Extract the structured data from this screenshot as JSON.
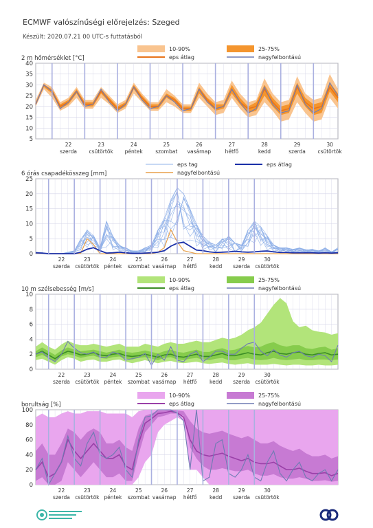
{
  "header": {
    "title": "ECMWF valószínűségi előrejelzés: Szeged",
    "subtitle": "Készült: 2020.07.21 00 UTC-s futtatásból"
  },
  "days": [
    {
      "num": "22",
      "name": "szerda"
    },
    {
      "num": "23",
      "name": "csütörtök"
    },
    {
      "num": "24",
      "name": "péntek"
    },
    {
      "num": "25",
      "name": "szombat"
    },
    {
      "num": "26",
      "name": "vasárnap"
    },
    {
      "num": "27",
      "name": "hétfő"
    },
    {
      "num": "28",
      "name": "kedd"
    },
    {
      "num": "29",
      "name": "szerda"
    },
    {
      "num": "30",
      "name": "csütörtök"
    }
  ],
  "colors": {
    "temp_band_outer": "#f9c48f",
    "temp_band_inner": "#f4952e",
    "temp_mean": "#e8731a",
    "hires": "#6e7cb3",
    "precip_member": "#8fb0e8",
    "precip_mean": "#1a2fa8",
    "precip_hires": "#e8a04a",
    "wind_band_outer": "#b2e47a",
    "wind_band_inner": "#86cc4c",
    "wind_mean": "#3a8c26",
    "cloud_band_outer": "#e9a6ee",
    "cloud_band_inner": "#c77ad3",
    "cloud_mean": "#9a40a8",
    "grid": "#d6d6e8",
    "day_line": "#aab0e0"
  },
  "chart_data": [
    {
      "type": "area",
      "id": "temperature",
      "title": "2 m hőmérséklet [°C]",
      "legend": {
        "band_outer": "10-90%",
        "band_inner": "25-75%",
        "mean": "eps átlag",
        "hires": "nagyfelbontású"
      },
      "x_step_hours": 6,
      "ylim": [
        5,
        40
      ],
      "yticks": [
        5,
        10,
        15,
        20,
        25,
        30,
        35,
        40
      ],
      "p10": [
        20,
        28,
        24,
        18,
        20,
        24,
        19,
        19,
        24,
        21,
        17,
        19,
        26,
        22,
        18,
        18,
        22,
        20,
        17,
        17,
        24,
        20,
        16,
        17,
        24,
        19,
        15,
        16,
        22,
        18,
        13,
        14,
        22,
        17,
        13,
        14,
        24,
        19
      ],
      "p25": [
        21,
        29,
        26,
        19,
        21,
        26,
        20,
        20,
        26,
        22,
        18,
        20,
        28,
        23,
        19,
        19,
        24,
        22,
        18,
        18,
        26,
        22,
        18,
        19,
        26,
        21,
        17,
        18,
        25,
        20,
        16,
        17,
        26,
        20,
        16,
        17,
        27,
        22
      ],
      "mean": [
        21,
        30,
        27,
        20,
        22,
        27,
        21,
        21,
        27,
        23,
        19,
        21,
        29,
        24,
        20,
        20,
        25,
        23,
        19,
        19,
        28,
        23,
        19,
        20,
        28,
        22,
        19,
        20,
        28,
        22,
        18,
        19,
        29,
        22,
        19,
        20,
        29,
        24
      ],
      "p75": [
        22,
        30,
        28,
        21,
        23,
        28,
        22,
        22,
        28,
        24,
        20,
        22,
        30,
        25,
        21,
        21,
        26,
        24,
        20,
        20,
        29,
        24,
        21,
        21,
        30,
        24,
        20,
        22,
        30,
        24,
        20,
        21,
        31,
        24,
        21,
        22,
        31,
        26
      ],
      "p90": [
        23,
        31,
        29,
        22,
        24,
        29,
        23,
        23,
        29,
        25,
        21,
        23,
        31,
        26,
        22,
        22,
        28,
        25,
        21,
        21,
        31,
        26,
        22,
        23,
        32,
        26,
        22,
        23,
        33,
        26,
        22,
        23,
        34,
        26,
        23,
        24,
        35,
        28
      ],
      "hires": [
        21,
        30,
        27,
        19,
        22,
        27,
        20,
        21,
        28,
        22,
        18,
        21,
        29,
        23,
        19,
        20,
        25,
        22,
        18,
        19,
        28,
        22,
        19,
        20,
        28,
        22,
        17,
        19,
        29,
        21,
        17,
        18,
        30,
        21,
        17,
        19,
        31,
        25
      ]
    },
    {
      "type": "line",
      "id": "precipitation",
      "title": "6 órás csapadékösszeg [mm]",
      "legend": {
        "members": "eps tag",
        "mean": "eps átlag",
        "hires": "nagyfelbontású"
      },
      "x_step_hours": 6,
      "ylim": [
        0,
        25
      ],
      "yticks": [
        0,
        5,
        10,
        15,
        20,
        25
      ],
      "mean": [
        0.3,
        0.2,
        0,
        0,
        0,
        0,
        0,
        0.5,
        1.5,
        2,
        1,
        0.2,
        0.3,
        0.5,
        0.3,
        0.1,
        0.1,
        0.2,
        0.3,
        0.5,
        1,
        2.5,
        3.5,
        3.8,
        2.5,
        1.2,
        1,
        0.6,
        0.4,
        0.5,
        0.6,
        0.8,
        0.6,
        0.5,
        0.6,
        0.8,
        0.9,
        0.6,
        0.4,
        0.4,
        0.3,
        0.3,
        0.3,
        0.3,
        0.2,
        0.3,
        0.2,
        0.3
      ],
      "hires": [
        0.2,
        0.1,
        0,
        0,
        0,
        0,
        0,
        0.2,
        5,
        3,
        0,
        0,
        0,
        0,
        0,
        0,
        0,
        0,
        0,
        0.5,
        2,
        8,
        4,
        1,
        0.5,
        0,
        0,
        0,
        0,
        0,
        0,
        0,
        0,
        0,
        0,
        0,
        0,
        0,
        0,
        0,
        0,
        0,
        0,
        0,
        0,
        0,
        0,
        0
      ],
      "member_max": [
        0.5,
        0.5,
        0,
        0,
        0,
        0.5,
        1,
        5,
        8,
        6,
        2,
        11,
        6,
        3,
        2,
        1,
        1,
        2,
        3,
        8,
        12,
        18,
        22,
        20,
        15,
        10,
        6,
        4,
        3,
        5,
        6,
        4,
        3,
        8,
        11,
        9,
        6,
        3,
        2,
        2,
        1.5,
        2,
        1.5,
        1.5,
        1,
        2,
        1.5,
        2
      ]
    },
    {
      "type": "area",
      "id": "wind",
      "title": "10 m szélsebesség [m/s]",
      "legend": {
        "band_outer": "10-90%",
        "band_inner": "25-75%",
        "mean": "eps átlag",
        "hires": "nagyfelbontású"
      },
      "x_step_hours": 6,
      "ylim": [
        0,
        10
      ],
      "yticks": [
        0,
        2,
        4,
        6,
        8,
        10
      ],
      "p10": [
        1.2,
        1.4,
        1.0,
        0.6,
        1.2,
        1.6,
        1.4,
        1.0,
        1.2,
        1.3,
        1.0,
        1.0,
        1.2,
        1.3,
        1.0,
        0.8,
        1.0,
        1.2,
        1.0,
        0.8,
        1.0,
        1.1,
        0.9,
        0.8,
        0.9,
        1.0,
        0.8,
        0.7,
        0.8,
        0.9,
        0.7,
        0.6,
        0.7,
        0.8,
        0.6,
        0.6,
        0.6,
        0.7,
        0.6,
        0.5,
        0.6,
        0.6,
        0.5,
        0.5,
        0.6,
        0.5,
        0.5,
        0.6
      ],
      "p25": [
        1.6,
        1.9,
        1.5,
        1.0,
        1.7,
        2.0,
        1.8,
        1.5,
        1.7,
        1.8,
        1.5,
        1.4,
        1.6,
        1.7,
        1.4,
        1.3,
        1.5,
        1.6,
        1.4,
        1.2,
        1.5,
        1.6,
        1.3,
        1.2,
        1.4,
        1.5,
        1.3,
        1.2,
        1.4,
        1.5,
        1.2,
        1.2,
        1.4,
        1.5,
        1.3,
        1.2,
        1.3,
        1.5,
        1.3,
        1.2,
        1.3,
        1.4,
        1.2,
        1.2,
        1.3,
        1.3,
        1.2,
        1.3
      ],
      "mean": [
        2.0,
        2.4,
        1.9,
        1.4,
        2.0,
        2.4,
        2.2,
        1.9,
        2.0,
        2.2,
        1.9,
        1.8,
        2.0,
        2.1,
        1.8,
        1.7,
        1.8,
        2.0,
        1.8,
        1.6,
        1.9,
        2.0,
        1.7,
        1.6,
        1.8,
        2.0,
        1.7,
        1.7,
        1.9,
        2.1,
        1.8,
        1.8,
        2.0,
        2.2,
        2.0,
        1.9,
        2.2,
        2.4,
        2.1,
        2.0,
        2.2,
        2.3,
        2.0,
        1.9,
        2.1,
        2.2,
        1.9,
        2.0
      ],
      "p75": [
        2.4,
        2.9,
        2.4,
        1.9,
        2.5,
        2.9,
        2.6,
        2.4,
        2.5,
        2.6,
        2.4,
        2.2,
        2.4,
        2.6,
        2.3,
        2.2,
        2.3,
        2.5,
        2.3,
        2.1,
        2.4,
        2.6,
        2.3,
        2.2,
        2.4,
        2.6,
        2.3,
        2.3,
        2.6,
        2.8,
        2.5,
        2.6,
        2.9,
        3.1,
        2.9,
        3.0,
        3.4,
        3.6,
        3.2,
        3.0,
        3.2,
        3.2,
        2.8,
        2.7,
        2.9,
        3.0,
        2.6,
        2.8
      ],
      "p90": [
        3.0,
        3.6,
        3.0,
        2.6,
        3.3,
        3.8,
        3.4,
        3.2,
        3.2,
        3.4,
        3.2,
        3.0,
        3.2,
        3.4,
        3.0,
        3.0,
        3.0,
        3.4,
        3.2,
        3.0,
        3.4,
        3.6,
        3.4,
        3.4,
        3.6,
        3.8,
        3.6,
        3.6,
        3.9,
        4.2,
        4.0,
        4.2,
        4.6,
        5.2,
        5.6,
        6.2,
        7.4,
        8.6,
        9.5,
        8.8,
        6.4,
        5.6,
        5.8,
        5.2,
        5.0,
        4.9,
        4.6,
        4.8
      ],
      "hires": [
        2.0,
        2.3,
        1.5,
        1.0,
        2.0,
        3.7,
        2.8,
        2.2,
        2.0,
        2.3,
        1.6,
        1.6,
        2.3,
        2.0,
        1.2,
        1.4,
        1.6,
        2.1,
        0.5,
        2.0,
        1.2,
        3.0,
        1.2,
        1.0,
        2.0,
        2.4,
        1.0,
        1.6,
        2.4,
        2.4,
        2.0,
        2.0,
        2.8,
        3.4,
        3.6,
        2.4,
        1.8,
        2.6,
        1.9,
        1.6,
        2.2,
        2.4,
        1.8,
        1.6,
        2.0,
        1.8,
        1.0,
        3.2
      ]
    },
    {
      "type": "area",
      "id": "cloud",
      "title": "borultság [%]",
      "legend": {
        "band_outer": "10-90%",
        "band_inner": "25-75%",
        "mean": "eps átlag",
        "hires": "nagyfelbontású"
      },
      "x_step_hours": 6,
      "ylim": [
        0,
        100
      ],
      "yticks": [
        0,
        20,
        40,
        60,
        80,
        100
      ],
      "p10": [
        0,
        0,
        0,
        0,
        0,
        0,
        0,
        0,
        0,
        0,
        0,
        0,
        0,
        0,
        0,
        0,
        10,
        30,
        40,
        70,
        80,
        85,
        90,
        85,
        20,
        20,
        10,
        0,
        0,
        0,
        0,
        0,
        0,
        0,
        0,
        0,
        0,
        0,
        0,
        0,
        0,
        0,
        0,
        0,
        0,
        0,
        0,
        0
      ],
      "p25": [
        5,
        10,
        0,
        0,
        5,
        30,
        20,
        10,
        20,
        30,
        20,
        10,
        10,
        15,
        5,
        5,
        40,
        70,
        80,
        90,
        92,
        95,
        95,
        92,
        50,
        35,
        25,
        20,
        20,
        22,
        20,
        18,
        18,
        20,
        15,
        12,
        12,
        14,
        10,
        8,
        8,
        10,
        8,
        5,
        5,
        6,
        4,
        5
      ],
      "mean": [
        20,
        30,
        10,
        15,
        30,
        60,
        45,
        35,
        45,
        55,
        45,
        35,
        35,
        40,
        25,
        20,
        55,
        82,
        88,
        95,
        96,
        98,
        96,
        90,
        60,
        45,
        40,
        38,
        40,
        42,
        38,
        35,
        32,
        35,
        30,
        28,
        28,
        30,
        25,
        20,
        20,
        22,
        18,
        15,
        15,
        16,
        12,
        15
      ],
      "p75": [
        45,
        55,
        40,
        40,
        55,
        75,
        70,
        60,
        70,
        75,
        70,
        55,
        55,
        60,
        50,
        45,
        75,
        92,
        95,
        99,
        99,
        100,
        99,
        98,
        85,
        75,
        70,
        68,
        70,
        72,
        68,
        65,
        62,
        65,
        60,
        55,
        55,
        58,
        52,
        48,
        45,
        48,
        42,
        38,
        38,
        40,
        35,
        38
      ],
      "p90": [
        90,
        95,
        90,
        90,
        95,
        98,
        95,
        95,
        98,
        98,
        98,
        95,
        95,
        95,
        95,
        90,
        98,
        100,
        100,
        100,
        100,
        100,
        100,
        100,
        100,
        100,
        100,
        100,
        100,
        100,
        100,
        100,
        100,
        100,
        100,
        100,
        100,
        100,
        100,
        100,
        100,
        100,
        100,
        100,
        100,
        100,
        100,
        100
      ],
      "hires": [
        20,
        35,
        0,
        15,
        30,
        65,
        35,
        25,
        55,
        70,
        40,
        35,
        40,
        50,
        20,
        10,
        60,
        90,
        92,
        100,
        100,
        100,
        95,
        85,
        20,
        100,
        5,
        10,
        55,
        60,
        15,
        10,
        20,
        40,
        10,
        5,
        30,
        45,
        15,
        5,
        20,
        30,
        10,
        5,
        15,
        20,
        5,
        20
      ]
    }
  ]
}
